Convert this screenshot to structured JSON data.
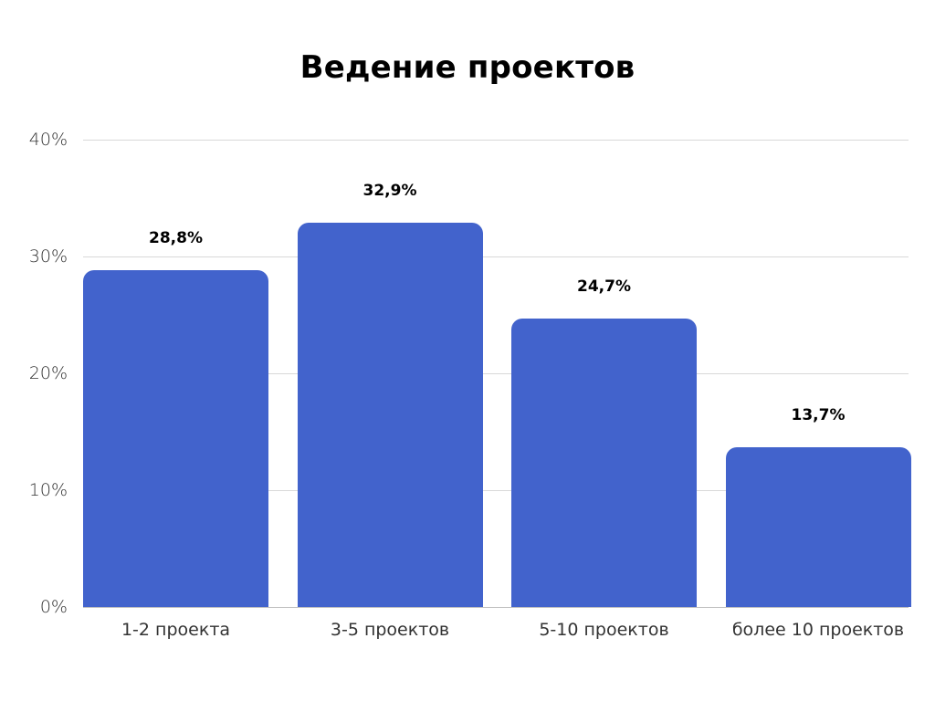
{
  "chart_data": {
    "type": "bar",
    "title": "Ведение проектов",
    "xlabel": "",
    "ylabel": "",
    "categories": [
      "1-2 проекта",
      "3-5 проектов",
      "5-10 проектов",
      "более 10 проектов"
    ],
    "values": [
      28.8,
      32.9,
      24.7,
      13.7
    ],
    "value_labels": [
      "28,8%",
      "32,9%",
      "24,7%",
      "13,7%"
    ],
    "ylim": [
      0,
      40
    ],
    "yticks": [
      "0%",
      "10%",
      "20%",
      "30%",
      "40%"
    ],
    "grid": true,
    "legend": "none",
    "bar_color": "#4263cc"
  }
}
